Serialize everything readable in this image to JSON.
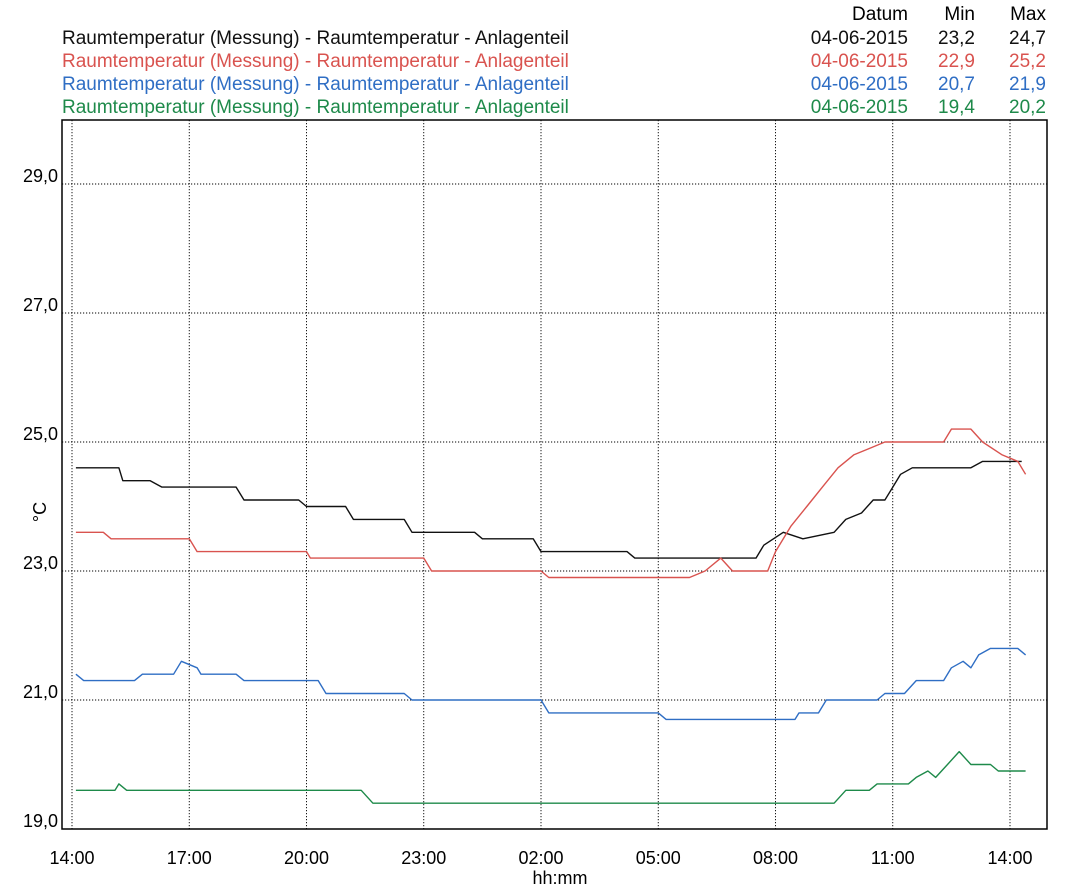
{
  "header": {
    "col_datum": "Datum",
    "col_min": "Min",
    "col_max": "Max"
  },
  "chart_data": {
    "type": "line",
    "title": "",
    "xlabel": "hh:mm",
    "ylabel": "°C",
    "ylim": [
      19.0,
      30.0
    ],
    "xlim_hours": [
      14.0,
      38.8
    ],
    "grid": true,
    "legend_placement": "top",
    "x_tick_hours": [
      14,
      17,
      20,
      23,
      26,
      29,
      32,
      35,
      38
    ],
    "x_tick_labels": [
      "14:00",
      "17:00",
      "20:00",
      "23:00",
      "02:00",
      "05:00",
      "08:00",
      "11:00",
      "14:00"
    ],
    "y_ticks": [
      19.0,
      21.0,
      23.0,
      25.0,
      27.0,
      29.0
    ],
    "y_tick_labels": [
      "19,0",
      "21,0",
      "23,0",
      "25,0",
      "27,0",
      "29,0"
    ],
    "series": [
      {
        "name": "Raumtemperatur (Messung) - Raumtemperatur - Anlagenteil",
        "datum": "04-06-2015",
        "min": "23,2",
        "max": "24,7",
        "color": "#111111",
        "points": [
          [
            14.1,
            24.6
          ],
          [
            15.2,
            24.6
          ],
          [
            15.3,
            24.4
          ],
          [
            16.0,
            24.4
          ],
          [
            16.3,
            24.3
          ],
          [
            17.0,
            24.3
          ],
          [
            18.2,
            24.3
          ],
          [
            18.4,
            24.1
          ],
          [
            19.8,
            24.1
          ],
          [
            20.0,
            24.0
          ],
          [
            21.0,
            24.0
          ],
          [
            21.2,
            23.8
          ],
          [
            22.5,
            23.8
          ],
          [
            22.7,
            23.6
          ],
          [
            24.3,
            23.6
          ],
          [
            24.5,
            23.5
          ],
          [
            25.8,
            23.5
          ],
          [
            26.0,
            23.3
          ],
          [
            28.2,
            23.3
          ],
          [
            28.4,
            23.2
          ],
          [
            31.5,
            23.2
          ],
          [
            31.7,
            23.4
          ],
          [
            32.2,
            23.6
          ],
          [
            32.7,
            23.5
          ],
          [
            33.5,
            23.6
          ],
          [
            33.8,
            23.8
          ],
          [
            34.2,
            23.9
          ],
          [
            34.5,
            24.1
          ],
          [
            34.8,
            24.1
          ],
          [
            35.0,
            24.3
          ],
          [
            35.2,
            24.5
          ],
          [
            35.5,
            24.6
          ],
          [
            37.0,
            24.6
          ],
          [
            37.3,
            24.7
          ],
          [
            38.3,
            24.7
          ]
        ]
      },
      {
        "name": "Raumtemperatur (Messung) - Raumtemperatur - Anlagenteil",
        "datum": "04-06-2015",
        "min": "22,9",
        "max": "25,2",
        "color": "#d9534f",
        "points": [
          [
            14.1,
            23.6
          ],
          [
            14.8,
            23.6
          ],
          [
            15.0,
            23.5
          ],
          [
            17.0,
            23.5
          ],
          [
            17.2,
            23.3
          ],
          [
            20.0,
            23.3
          ],
          [
            20.1,
            23.2
          ],
          [
            23.0,
            23.2
          ],
          [
            23.2,
            23.0
          ],
          [
            26.0,
            23.0
          ],
          [
            26.2,
            22.9
          ],
          [
            29.8,
            22.9
          ],
          [
            30.2,
            23.0
          ],
          [
            30.6,
            23.2
          ],
          [
            30.9,
            23.0
          ],
          [
            31.8,
            23.0
          ],
          [
            32.0,
            23.3
          ],
          [
            32.4,
            23.7
          ],
          [
            32.8,
            24.0
          ],
          [
            33.2,
            24.3
          ],
          [
            33.6,
            24.6
          ],
          [
            34.0,
            24.8
          ],
          [
            34.4,
            24.9
          ],
          [
            34.8,
            25.0
          ],
          [
            35.4,
            25.0
          ],
          [
            36.3,
            25.0
          ],
          [
            36.5,
            25.2
          ],
          [
            37.0,
            25.2
          ],
          [
            37.3,
            25.0
          ],
          [
            37.8,
            24.8
          ],
          [
            38.2,
            24.7
          ],
          [
            38.4,
            24.5
          ]
        ]
      },
      {
        "name": "Raumtemperatur (Messung) - Raumtemperatur - Anlagenteil",
        "datum": "04-06-2015",
        "min": "20,7",
        "max": "21,9",
        "color": "#2f6ec4",
        "points": [
          [
            14.1,
            21.4
          ],
          [
            14.3,
            21.3
          ],
          [
            15.6,
            21.3
          ],
          [
            15.8,
            21.4
          ],
          [
            16.6,
            21.4
          ],
          [
            16.8,
            21.6
          ],
          [
            17.2,
            21.5
          ],
          [
            17.3,
            21.4
          ],
          [
            18.2,
            21.4
          ],
          [
            18.4,
            21.3
          ],
          [
            20.3,
            21.3
          ],
          [
            20.5,
            21.1
          ],
          [
            22.5,
            21.1
          ],
          [
            22.7,
            21.0
          ],
          [
            26.0,
            21.0
          ],
          [
            26.2,
            20.8
          ],
          [
            29.0,
            20.8
          ],
          [
            29.2,
            20.7
          ],
          [
            32.5,
            20.7
          ],
          [
            32.6,
            20.8
          ],
          [
            33.1,
            20.8
          ],
          [
            33.3,
            21.0
          ],
          [
            34.6,
            21.0
          ],
          [
            34.8,
            21.1
          ],
          [
            35.3,
            21.1
          ],
          [
            35.6,
            21.3
          ],
          [
            36.3,
            21.3
          ],
          [
            36.5,
            21.5
          ],
          [
            36.8,
            21.6
          ],
          [
            37.0,
            21.5
          ],
          [
            37.2,
            21.7
          ],
          [
            37.5,
            21.8
          ],
          [
            38.2,
            21.8
          ],
          [
            38.4,
            21.7
          ]
        ]
      },
      {
        "name": "Raumtemperatur (Messung) - Raumtemperatur - Anlagenteil",
        "datum": "04-06-2015",
        "min": "19,4",
        "max": "20,2",
        "color": "#1e8a4a",
        "points": [
          [
            14.1,
            19.6
          ],
          [
            15.1,
            19.6
          ],
          [
            15.2,
            19.7
          ],
          [
            15.4,
            19.6
          ],
          [
            21.4,
            19.6
          ],
          [
            21.7,
            19.4
          ],
          [
            33.5,
            19.4
          ],
          [
            33.8,
            19.6
          ],
          [
            34.4,
            19.6
          ],
          [
            34.6,
            19.7
          ],
          [
            35.4,
            19.7
          ],
          [
            35.6,
            19.8
          ],
          [
            35.9,
            19.9
          ],
          [
            36.1,
            19.8
          ],
          [
            36.4,
            20.0
          ],
          [
            36.7,
            20.2
          ],
          [
            37.0,
            20.0
          ],
          [
            37.5,
            20.0
          ],
          [
            37.7,
            19.9
          ],
          [
            38.4,
            19.9
          ]
        ]
      }
    ]
  }
}
